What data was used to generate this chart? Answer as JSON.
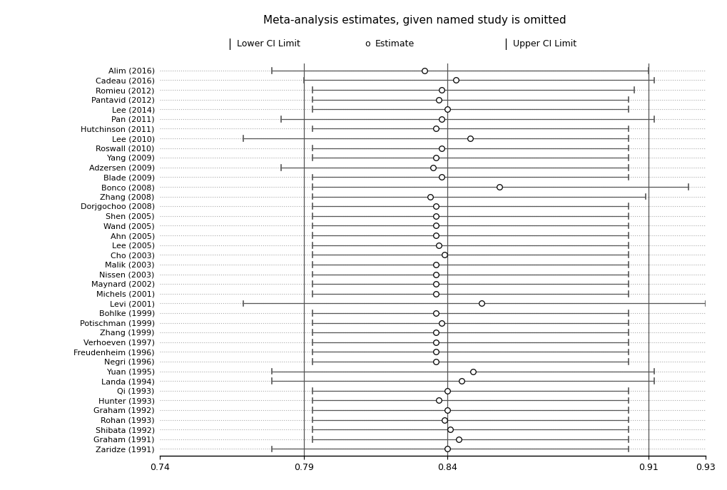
{
  "title": "Meta-analysis estimates, given named study is omitted",
  "xlim": [
    0.74,
    0.93
  ],
  "xticks": [
    0.74,
    0.79,
    0.84,
    0.91,
    0.93
  ],
  "xtick_labels": [
    "0.74",
    "0.79",
    "0.84",
    "0.91",
    "0.93"
  ],
  "vlines": [
    0.79,
    0.84,
    0.91
  ],
  "studies": [
    {
      "name": "Alim (2016)",
      "lower": 0.779,
      "estimate": 0.832,
      "upper": 0.91
    },
    {
      "name": "Cadeau (2016)",
      "lower": 0.79,
      "estimate": 0.843,
      "upper": 0.912
    },
    {
      "name": "Romieu (2012)",
      "lower": 0.793,
      "estimate": 0.838,
      "upper": 0.905
    },
    {
      "name": "Pantavid (2012)",
      "lower": 0.793,
      "estimate": 0.837,
      "upper": 0.903
    },
    {
      "name": "Lee (2014)",
      "lower": 0.793,
      "estimate": 0.84,
      "upper": 0.903
    },
    {
      "name": "Pan (2011)",
      "lower": 0.782,
      "estimate": 0.838,
      "upper": 0.912
    },
    {
      "name": "Hutchinson (2011)",
      "lower": 0.793,
      "estimate": 0.836,
      "upper": 0.903
    },
    {
      "name": "Lee (2010)",
      "lower": 0.769,
      "estimate": 0.848,
      "upper": 0.903
    },
    {
      "name": "Roswall (2010)",
      "lower": 0.793,
      "estimate": 0.838,
      "upper": 0.903
    },
    {
      "name": "Yang (2009)",
      "lower": 0.793,
      "estimate": 0.836,
      "upper": 0.903
    },
    {
      "name": "Adzersen (2009)",
      "lower": 0.782,
      "estimate": 0.835,
      "upper": 0.903
    },
    {
      "name": "Blade (2009)",
      "lower": 0.793,
      "estimate": 0.838,
      "upper": 0.903
    },
    {
      "name": "Bonco (2008)",
      "lower": 0.793,
      "estimate": 0.858,
      "upper": 0.924
    },
    {
      "name": "Zhang (2008)",
      "lower": 0.793,
      "estimate": 0.834,
      "upper": 0.909
    },
    {
      "name": "Dorjgochoo (2008)",
      "lower": 0.793,
      "estimate": 0.836,
      "upper": 0.903
    },
    {
      "name": "Shen (2005)",
      "lower": 0.793,
      "estimate": 0.836,
      "upper": 0.903
    },
    {
      "name": "Wand (2005)",
      "lower": 0.793,
      "estimate": 0.836,
      "upper": 0.903
    },
    {
      "name": "Ahn (2005)",
      "lower": 0.793,
      "estimate": 0.836,
      "upper": 0.903
    },
    {
      "name": "Lee (2005)",
      "lower": 0.793,
      "estimate": 0.837,
      "upper": 0.903
    },
    {
      "name": "Cho (2003)",
      "lower": 0.793,
      "estimate": 0.839,
      "upper": 0.903
    },
    {
      "name": "Malik (2003)",
      "lower": 0.793,
      "estimate": 0.836,
      "upper": 0.903
    },
    {
      "name": "Nissen (2003)",
      "lower": 0.793,
      "estimate": 0.836,
      "upper": 0.903
    },
    {
      "name": "Maynard (2002)",
      "lower": 0.793,
      "estimate": 0.836,
      "upper": 0.903
    },
    {
      "name": "Michels (2001)",
      "lower": 0.793,
      "estimate": 0.836,
      "upper": 0.903
    },
    {
      "name": "Levi (2001)",
      "lower": 0.769,
      "estimate": 0.852,
      "upper": 0.93
    },
    {
      "name": "Bohlke (1999)",
      "lower": 0.793,
      "estimate": 0.836,
      "upper": 0.903
    },
    {
      "name": "Potischman (1999)",
      "lower": 0.793,
      "estimate": 0.838,
      "upper": 0.903
    },
    {
      "name": "Zhang (1999)",
      "lower": 0.793,
      "estimate": 0.836,
      "upper": 0.903
    },
    {
      "name": "Verhoeven (1997)",
      "lower": 0.793,
      "estimate": 0.836,
      "upper": 0.903
    },
    {
      "name": "Freudenheim (1996)",
      "lower": 0.793,
      "estimate": 0.836,
      "upper": 0.903
    },
    {
      "name": "Negri (1996)",
      "lower": 0.793,
      "estimate": 0.836,
      "upper": 0.903
    },
    {
      "name": "Yuan (1995)",
      "lower": 0.779,
      "estimate": 0.849,
      "upper": 0.912
    },
    {
      "name": "Landa (1994)",
      "lower": 0.779,
      "estimate": 0.845,
      "upper": 0.912
    },
    {
      "name": "Qi (1993)",
      "lower": 0.793,
      "estimate": 0.84,
      "upper": 0.903
    },
    {
      "name": "Hunter (1993)",
      "lower": 0.793,
      "estimate": 0.837,
      "upper": 0.903
    },
    {
      "name": "Graham (1992)",
      "lower": 0.793,
      "estimate": 0.84,
      "upper": 0.903
    },
    {
      "name": "Rohan (1993)",
      "lower": 0.793,
      "estimate": 0.839,
      "upper": 0.903
    },
    {
      "name": "Shibata (1992)",
      "lower": 0.793,
      "estimate": 0.841,
      "upper": 0.903
    },
    {
      "name": "Graham (1991)",
      "lower": 0.793,
      "estimate": 0.844,
      "upper": 0.903
    },
    {
      "name": "Zaridze (1991)",
      "lower": 0.779,
      "estimate": 0.84,
      "upper": 0.903
    }
  ],
  "dotted_line_color": "#aaaaaa",
  "vline_color": "#555555",
  "ci_line_color": "#555555",
  "tick_mark_color": "#555555",
  "background_color": "#ffffff",
  "text_color": "#000000",
  "title_fontsize": 11,
  "label_fontsize": 8,
  "legend_fontsize": 9,
  "xtick_fontsize": 9
}
